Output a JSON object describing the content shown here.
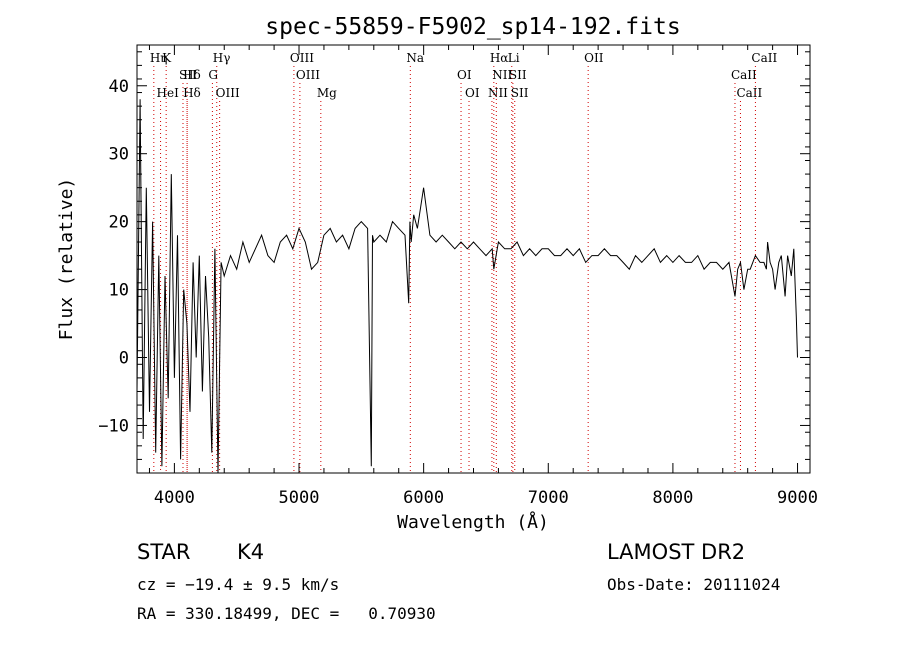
{
  "chart_data": {
    "type": "line",
    "title": "spec-55859-F5902_sp14-192.fits",
    "xlabel": "Wavelength (Å)",
    "ylabel": "Flux (relative)",
    "xlim": [
      3700,
      9100
    ],
    "ylim": [
      -17,
      46
    ],
    "xticks": [
      4000,
      5000,
      6000,
      7000,
      8000,
      9000
    ],
    "yticks": [
      -10,
      0,
      10,
      20,
      30,
      40
    ],
    "grid": false,
    "series": [
      {
        "x": [
          3700,
          3725,
          3750,
          3775,
          3800,
          3825,
          3850,
          3875,
          3900,
          3925,
          3950,
          3975,
          4000,
          4025,
          4050,
          4075,
          4100,
          4125,
          4150,
          4175,
          4200,
          4225,
          4250,
          4275,
          4300,
          4325,
          4350,
          4375,
          4400,
          4450,
          4500,
          4550,
          4600,
          4650,
          4700,
          4750,
          4800,
          4850,
          4900,
          4950,
          5000,
          5050,
          5100,
          5150,
          5200,
          5250,
          5300,
          5350,
          5400,
          5450,
          5500,
          5550,
          5580,
          5590,
          5600,
          5650,
          5700,
          5750,
          5800,
          5850,
          5880,
          5890,
          5900,
          5920,
          5950,
          6000,
          6050,
          6100,
          6150,
          6200,
          6250,
          6300,
          6350,
          6400,
          6450,
          6500,
          6550,
          6563,
          6600,
          6650,
          6700,
          6750,
          6800,
          6850,
          6900,
          6950,
          7000,
          7050,
          7100,
          7150,
          7200,
          7250,
          7300,
          7350,
          7400,
          7450,
          7500,
          7550,
          7600,
          7650,
          7700,
          7750,
          7800,
          7850,
          7900,
          7950,
          8000,
          8050,
          8100,
          8150,
          8200,
          8250,
          8300,
          8350,
          8400,
          8450,
          8498,
          8520,
          8542,
          8570,
          8600,
          8620,
          8662,
          8700,
          8730,
          8750,
          8760,
          8780,
          8800,
          8820,
          8850,
          8870,
          8900,
          8920,
          8950,
          8970,
          8990,
          9000
        ],
        "y": [
          -5,
          38,
          -12,
          25,
          -8,
          20,
          -14,
          15,
          -16,
          12,
          -6,
          27,
          -3,
          18,
          -15,
          10,
          5,
          -8,
          14,
          0,
          15,
          -5,
          12,
          3,
          -14,
          16,
          -17,
          14,
          12,
          15,
          13,
          17,
          14,
          16,
          18,
          15,
          14,
          17,
          18,
          16,
          19,
          17,
          13,
          14,
          18,
          19,
          17,
          18,
          16,
          19,
          20,
          19,
          -16,
          18,
          17,
          18,
          17,
          20,
          19,
          18,
          8,
          20,
          17,
          21,
          19,
          25,
          18,
          17,
          18,
          17,
          16,
          17,
          16,
          17,
          16,
          15,
          16,
          13,
          17,
          16,
          16,
          17,
          15,
          16,
          15,
          16,
          16,
          15,
          15,
          16,
          15,
          16,
          14,
          15,
          15,
          16,
          15,
          15,
          14,
          13,
          15,
          14,
          15,
          16,
          14,
          15,
          14,
          15,
          14,
          14,
          15,
          13,
          14,
          14,
          13,
          14,
          9,
          13,
          14,
          10,
          13,
          13,
          15,
          14,
          14,
          13,
          17,
          14,
          13,
          10,
          14,
          15,
          9,
          15,
          12,
          16,
          6,
          0
        ]
      }
    ],
    "lines": [
      {
        "label": "Hη",
        "wavelength": 3835
      },
      {
        "label": "Hδ",
        "wavelength": 4102
      },
      {
        "label": "HeI",
        "wavelength": 3889
      },
      {
        "label": "K",
        "wavelength": 3934
      },
      {
        "label": "SII",
        "wavelength": 4069
      },
      {
        "label": "Hδ",
        "wavelength": 4102
      },
      {
        "label": "Hγ",
        "wavelength": 4340
      },
      {
        "label": "G",
        "wavelength": 4305
      },
      {
        "label": "OIII",
        "wavelength": 4363
      },
      {
        "label": "OIII",
        "wavelength": 4959
      },
      {
        "label": "OIII",
        "wavelength": 5007
      },
      {
        "label": "Mg",
        "wavelength": 5175
      },
      {
        "label": "Na",
        "wavelength": 5893
      },
      {
        "label": "OI",
        "wavelength": 6300
      },
      {
        "label": "OI",
        "wavelength": 6364
      },
      {
        "label": "Hα",
        "wavelength": 6563
      },
      {
        "label": "SII",
        "wavelength": 6716
      },
      {
        "label": "NII",
        "wavelength": 6548
      },
      {
        "label": "Li",
        "wavelength": 6707
      },
      {
        "label": "NII",
        "wavelength": 6583
      },
      {
        "label": "SII",
        "wavelength": 6731
      },
      {
        "label": "OII",
        "wavelength": 7320
      },
      {
        "label": "CaII",
        "wavelength": 8498
      },
      {
        "label": "CaII",
        "wavelength": 8542
      },
      {
        "label": "CaII",
        "wavelength": 8662
      }
    ]
  },
  "info": {
    "object_class": "STAR",
    "subclass": "K4",
    "survey": "LAMOST DR2",
    "velocity": "cz = −19.4 ± 9.5 km/s",
    "obs_date": "Obs-Date: 20111024",
    "coords": "RA = 330.18499, DEC =   0.70930"
  }
}
